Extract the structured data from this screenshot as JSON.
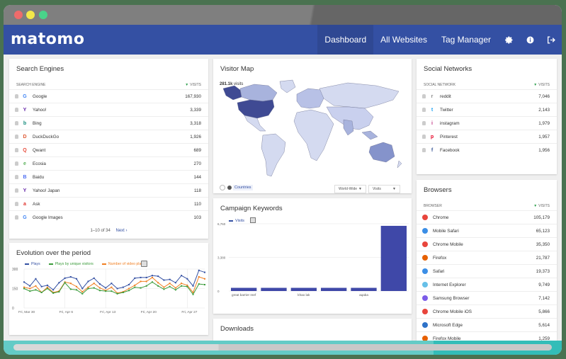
{
  "window": {
    "controls": [
      "close",
      "minimize",
      "maximize"
    ]
  },
  "navbar": {
    "logo": "matomo",
    "items": [
      {
        "label": "Dashboard",
        "active": true
      },
      {
        "label": "All Websites",
        "active": false
      },
      {
        "label": "Tag Manager",
        "active": false
      }
    ],
    "icons": [
      "gear-icon",
      "info-icon",
      "logout-icon"
    ]
  },
  "search_engines": {
    "title": "Search Engines",
    "col_label": "Search Engine",
    "col_value": "Visits",
    "rows": [
      {
        "name": "Google",
        "visits": "167,930",
        "icon": "G",
        "color": "#4285f4"
      },
      {
        "name": "Yahoo!",
        "visits": "3,339",
        "icon": "Y",
        "color": "#5f1fa5"
      },
      {
        "name": "Bing",
        "visits": "3,318",
        "icon": "b",
        "color": "#138a7b"
      },
      {
        "name": "DuckDuckGo",
        "visits": "1,926",
        "icon": "D",
        "color": "#de5833"
      },
      {
        "name": "Qwant",
        "visits": "689",
        "icon": "Q",
        "color": "#e74c3c"
      },
      {
        "name": "Ecosia",
        "visits": "270",
        "icon": "e",
        "color": "#5bb25b"
      },
      {
        "name": "Baidu",
        "visits": "144",
        "icon": "B",
        "color": "#4e6ef2"
      },
      {
        "name": "Yahoo! Japan",
        "visits": "118",
        "icon": "Y",
        "color": "#5f1fa5"
      },
      {
        "name": "Ask",
        "visits": "110",
        "icon": "a",
        "color": "#e0322c"
      },
      {
        "name": "Google Images",
        "visits": "103",
        "icon": "G",
        "color": "#4285f4"
      }
    ],
    "pager": "1–10 of 34",
    "next": "Next ›"
  },
  "visitor_map": {
    "title": "Visitor Map",
    "total": "281.1k",
    "total_suffix": "visits",
    "mode_link": "Countries",
    "region_select": "World-Wide",
    "metric_select": "Visits"
  },
  "campaign_keywords": {
    "title": "Campaign Keywords",
    "legend": "Visits"
  },
  "downloads": {
    "title": "Downloads"
  },
  "evolution": {
    "title": "Evolution over the period"
  },
  "social_networks": {
    "title": "Social Networks",
    "col_label": "Social Network",
    "col_value": "Visits",
    "rows": [
      {
        "name": "reddit",
        "visits": "7,046",
        "icon": "r",
        "color": "#888888"
      },
      {
        "name": "Twitter",
        "visits": "2,143",
        "icon": "t",
        "color": "#1da1f2"
      },
      {
        "name": "instagram",
        "visits": "1,979",
        "icon": "i",
        "color": "#c13584"
      },
      {
        "name": "Pinterest",
        "visits": "1,957",
        "icon": "p",
        "color": "#e60023"
      },
      {
        "name": "Facebook",
        "visits": "1,956",
        "icon": "f",
        "color": "#3b5998"
      }
    ]
  },
  "browsers": {
    "title": "Browsers",
    "col_label": "Browser",
    "col_value": "Visits",
    "rows": [
      {
        "name": "Chrome",
        "visits": "105,179",
        "color": "#e8453c"
      },
      {
        "name": "Mobile Safari",
        "visits": "65,123",
        "color": "#3b8ee6"
      },
      {
        "name": "Chrome Mobile",
        "visits": "35,350",
        "color": "#e8453c"
      },
      {
        "name": "Firefox",
        "visits": "21,787",
        "color": "#e66000"
      },
      {
        "name": "Safari",
        "visits": "19,373",
        "color": "#3b8ee6"
      },
      {
        "name": "Internet Explorer",
        "visits": "9,749",
        "color": "#67c0e8"
      },
      {
        "name": "Samsung Browser",
        "visits": "7,142",
        "color": "#7c5ce8"
      },
      {
        "name": "Chrome Mobile iOS",
        "visits": "5,866",
        "color": "#e8453c"
      },
      {
        "name": "Microsoft Edge",
        "visits": "5,614",
        "color": "#2e72c8"
      },
      {
        "name": "Firefox Mobile",
        "visits": "1,259",
        "color": "#e66000"
      }
    ]
  },
  "chart_data": [
    {
      "type": "line",
      "title": "Evolution over the period",
      "xlabel": "",
      "ylabel": "",
      "ylim": [
        0,
        300
      ],
      "yticks": [
        0,
        150,
        300
      ],
      "xtick_labels": [
        "Fri, Mar 30",
        "Fri, Apr 6",
        "Fri, Apr 13",
        "Fri, Apr 20",
        "Fri, Apr 27"
      ],
      "x": [
        "Mar 30",
        "Mar 31",
        "Apr 1",
        "Apr 2",
        "Apr 3",
        "Apr 4",
        "Apr 5",
        "Apr 6",
        "Apr 7",
        "Apr 8",
        "Apr 9",
        "Apr 10",
        "Apr 11",
        "Apr 12",
        "Apr 13",
        "Apr 14",
        "Apr 15",
        "Apr 16",
        "Apr 17",
        "Apr 18",
        "Apr 19",
        "Apr 20",
        "Apr 21",
        "Apr 22",
        "Apr 23",
        "Apr 24",
        "Apr 25",
        "Apr 26",
        "Apr 27",
        "Apr 28",
        "Apr 29",
        "Apr 30"
      ],
      "grid": true,
      "legend_position": "top",
      "series": [
        {
          "name": "Plays",
          "color": "#3450a3",
          "values": [
            200,
            170,
            225,
            165,
            175,
            140,
            195,
            230,
            240,
            225,
            150,
            205,
            230,
            185,
            155,
            190,
            150,
            160,
            180,
            230,
            235,
            235,
            250,
            245,
            215,
            220,
            195,
            250,
            225,
            170,
            290,
            275
          ]
        },
        {
          "name": "Plays by unique visitors",
          "color": "#3c9c3c",
          "values": [
            150,
            130,
            140,
            120,
            150,
            115,
            125,
            195,
            145,
            140,
            110,
            150,
            155,
            135,
            130,
            130,
            110,
            120,
            135,
            160,
            155,
            170,
            200,
            170,
            145,
            165,
            140,
            170,
            165,
            105,
            185,
            180
          ]
        },
        {
          "name": "Number of video plays",
          "color": "#f07f22",
          "values": [
            160,
            150,
            170,
            120,
            160,
            120,
            130,
            200,
            190,
            165,
            125,
            160,
            190,
            155,
            135,
            160,
            115,
            125,
            150,
            175,
            205,
            205,
            235,
            195,
            160,
            190,
            155,
            190,
            175,
            120,
            240,
            225
          ]
        }
      ]
    },
    {
      "type": "bar",
      "title": "Campaign Keywords",
      "categories": [
        "great barrier reef",
        "",
        "khao lak",
        "",
        "aqaba",
        ""
      ],
      "values": [
        320,
        320,
        320,
        320,
        320,
        6550
      ],
      "ylim": [
        0,
        6760
      ],
      "yticks": [
        "0",
        "3,380",
        "6,760"
      ],
      "legend": [
        "Visits"
      ],
      "color": "#3f48a8",
      "grid": true
    }
  ]
}
